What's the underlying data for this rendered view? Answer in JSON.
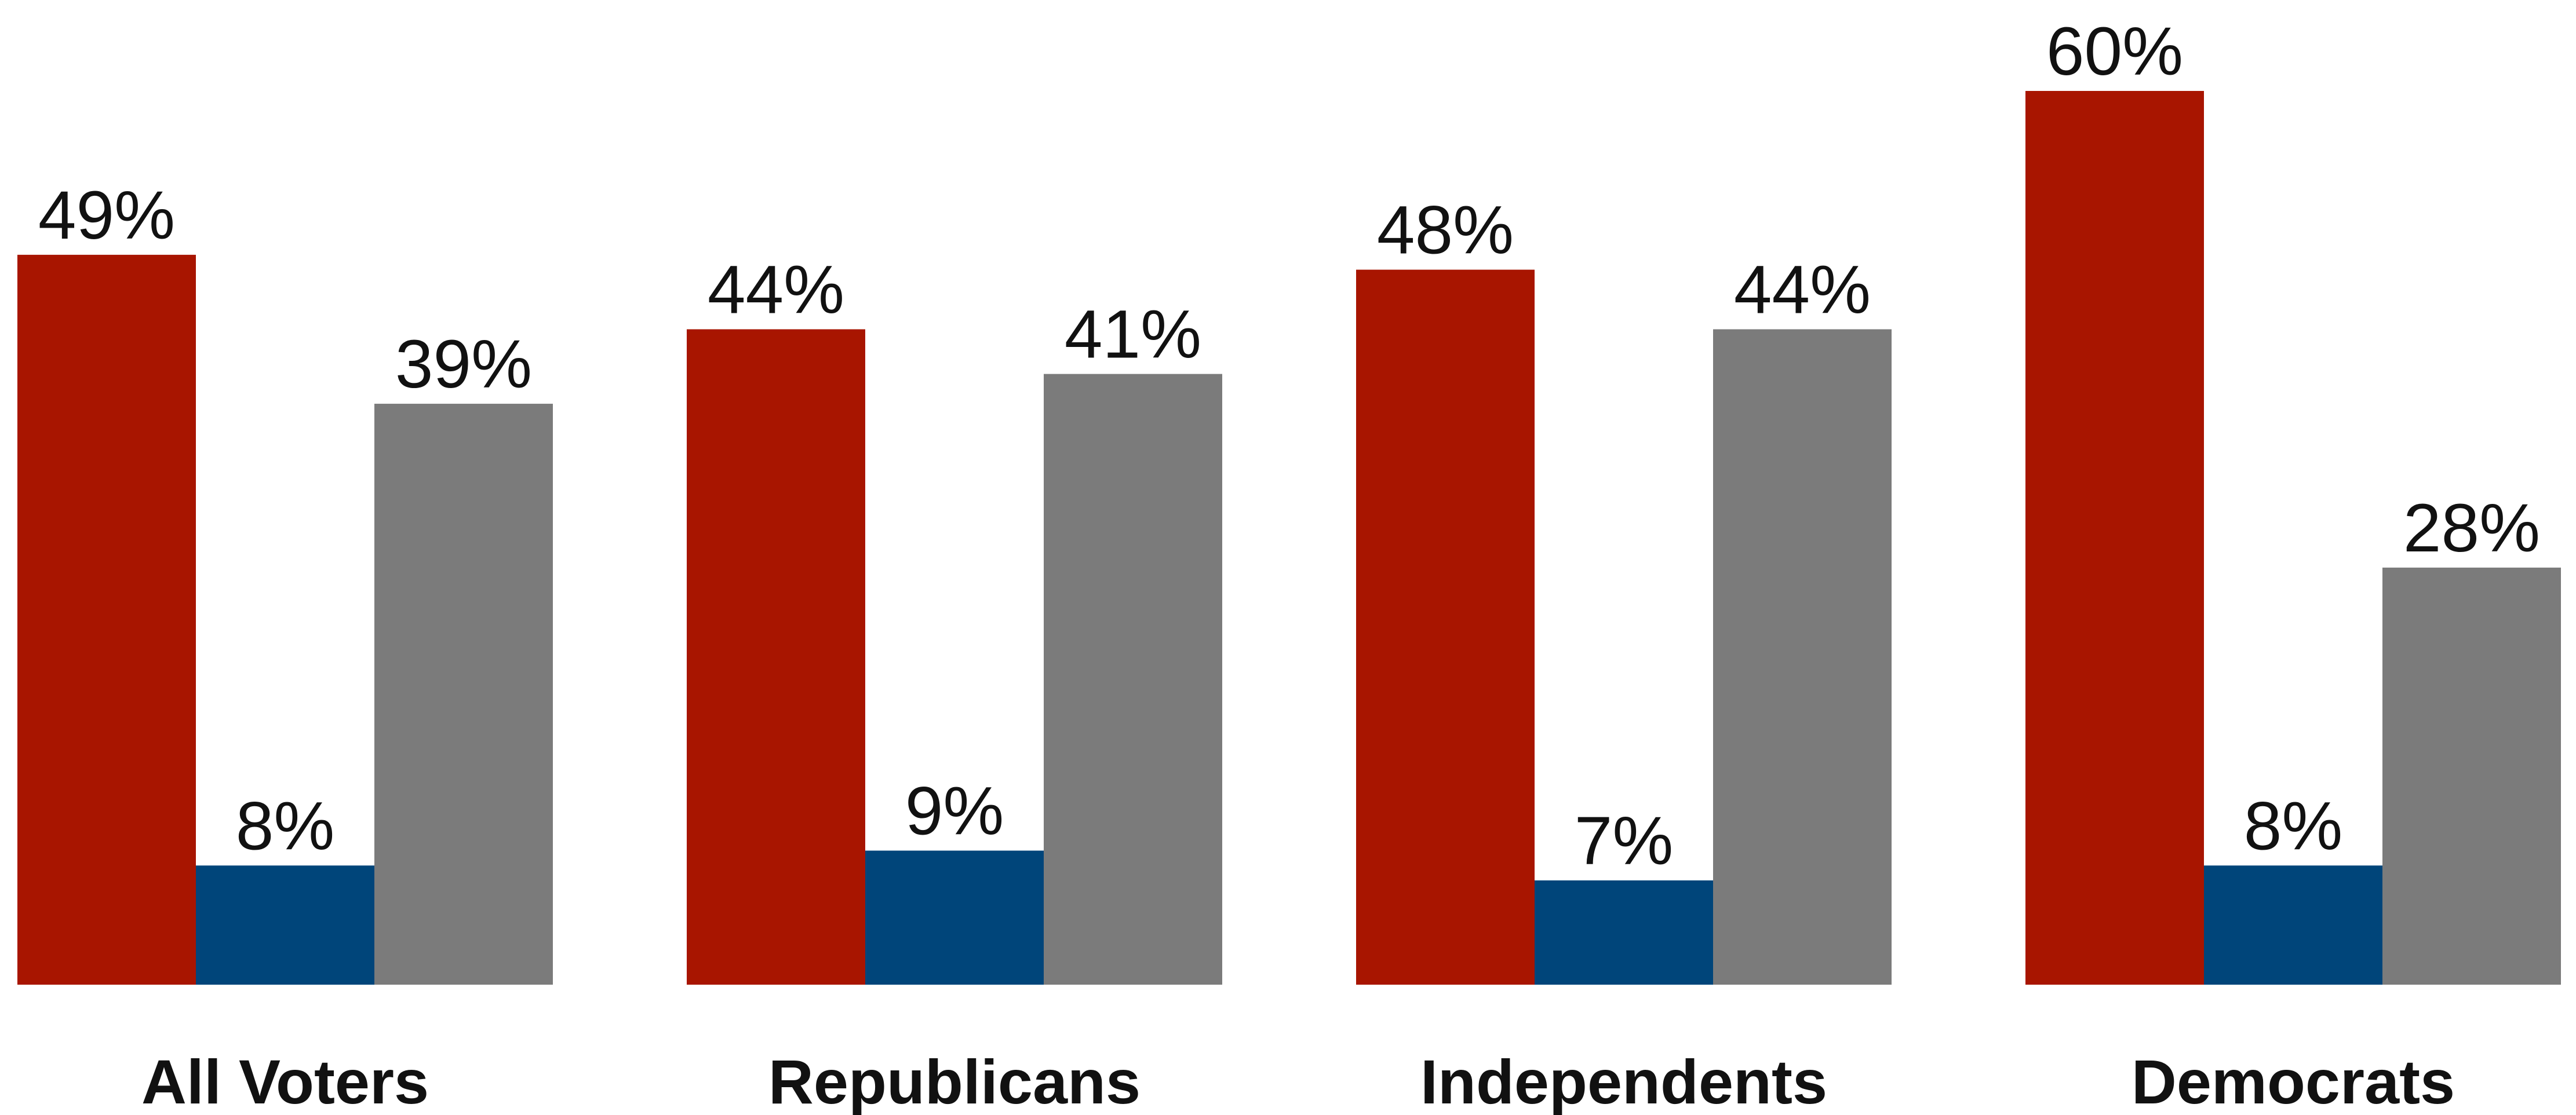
{
  "chart_data": {
    "type": "bar",
    "categories": [
      "All Voters",
      "Republicans",
      "Independents",
      "Democrats"
    ],
    "series": [
      {
        "values": [
          49,
          44,
          48,
          60
        ],
        "labels": [
          "49%",
          "44%",
          "48%",
          "60%"
        ],
        "color": "#A81500"
      },
      {
        "values": [
          8,
          9,
          7,
          8
        ],
        "labels": [
          "8%",
          "9%",
          "7%",
          "8%"
        ],
        "color": "#00457A"
      },
      {
        "values": [
          39,
          41,
          44,
          28
        ],
        "labels": [
          "39%",
          "41%",
          "44%",
          "28%"
        ],
        "color": "#7B7B7B"
      }
    ],
    "ylim": [
      0,
      60
    ],
    "grid": false,
    "legend": "none"
  }
}
